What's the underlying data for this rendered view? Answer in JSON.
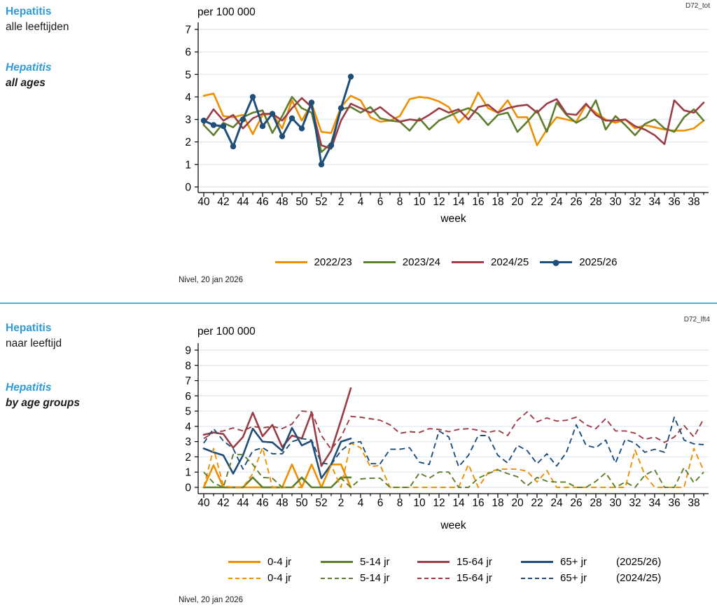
{
  "page": {
    "sections": [
      {
        "code": "D72_tot",
        "title_nl_1": "Hepatitis",
        "title_nl_2": "alle leeftijden",
        "title_en_1": "Hepatitis",
        "title_en_2": "all ages",
        "footer": "Nivel, 20 jan 2026"
      },
      {
        "code": "D72_lft4",
        "title_nl_1": "Hepatitis",
        "title_nl_2": "naar leeftijd",
        "title_en_1": "Hepatitis",
        "title_en_2": "by age groups",
        "footer": "Nivel, 20 jan 2026"
      }
    ],
    "colors": {
      "accent_blue_text": "#2e9bd6",
      "divider": "#56aecb",
      "orange": "#EE8F00",
      "green": "#5E7D2D",
      "maroon": "#9C3C47",
      "navy": "#1F4E79",
      "grid": "#e2eaf2",
      "axis": "#000000"
    }
  },
  "chart_data": [
    {
      "type": "line",
      "title": "per 100 000",
      "xlabel": "week",
      "ylabel": "per 100 000",
      "ylim": [
        0,
        7
      ],
      "yticks": [
        0,
        1,
        2,
        3,
        4,
        5,
        6,
        7
      ],
      "grid": true,
      "legend_position": "bottom",
      "categories": [
        40,
        41,
        42,
        43,
        44,
        45,
        46,
        47,
        48,
        49,
        50,
        51,
        52,
        1,
        2,
        3,
        4,
        5,
        6,
        7,
        8,
        9,
        10,
        11,
        12,
        13,
        14,
        15,
        16,
        17,
        18,
        19,
        20,
        21,
        22,
        23,
        24,
        25,
        26,
        27,
        28,
        29,
        30,
        31,
        32,
        33,
        34,
        35,
        36,
        37,
        38,
        39
      ],
      "xtick_labels": [
        40,
        42,
        44,
        46,
        48,
        50,
        52,
        2,
        4,
        6,
        8,
        10,
        12,
        14,
        16,
        18,
        20,
        22,
        24,
        26,
        28,
        30,
        32,
        34,
        36,
        38
      ],
      "legend_rows": [
        {
          "season": "",
          "entries": [
            0,
            1,
            2,
            3
          ]
        }
      ],
      "series": [
        {
          "name": "2022/23",
          "color": "#EE8F00",
          "style": "solid",
          "marker": false,
          "values": [
            4.05,
            4.15,
            3.15,
            3.1,
            3.2,
            2.35,
            3.2,
            3.25,
            2.6,
            3.85,
            2.95,
            3.7,
            2.45,
            2.4,
            3.55,
            4.05,
            3.85,
            3.1,
            2.9,
            2.95,
            3.15,
            3.9,
            4.0,
            3.95,
            3.8,
            3.55,
            2.85,
            3.3,
            4.2,
            3.5,
            3.3,
            3.85,
            3.1,
            3.1,
            1.85,
            2.55,
            3.1,
            3.0,
            2.9,
            3.65,
            3.3,
            3.0,
            2.85,
            3.0,
            2.6,
            2.75,
            2.65,
            2.55,
            2.5,
            2.5,
            2.6,
            2.95
          ]
        },
        {
          "name": "2023/24",
          "color": "#5E7D2D",
          "style": "solid",
          "marker": false,
          "values": [
            2.75,
            2.3,
            2.85,
            2.65,
            3.1,
            3.3,
            3.4,
            2.4,
            3.15,
            4.0,
            3.5,
            3.3,
            1.55,
            1.95,
            3.45,
            3.55,
            3.3,
            3.55,
            3.05,
            2.95,
            2.9,
            2.5,
            3.05,
            2.55,
            2.95,
            3.15,
            3.35,
            3.5,
            3.25,
            2.75,
            3.2,
            3.3,
            2.45,
            2.9,
            3.4,
            2.45,
            3.75,
            3.2,
            2.85,
            3.1,
            3.85,
            2.55,
            3.15,
            2.75,
            2.3,
            2.8,
            3.0,
            2.6,
            2.45,
            3.1,
            3.45,
            2.95
          ]
        },
        {
          "name": "2024/25",
          "color": "#9C3C47",
          "style": "solid",
          "marker": false,
          "values": [
            2.8,
            3.45,
            2.95,
            3.2,
            2.6,
            3.05,
            3.25,
            3.25,
            2.95,
            3.5,
            3.95,
            3.55,
            1.85,
            1.7,
            2.95,
            3.7,
            3.5,
            3.3,
            3.55,
            3.2,
            2.9,
            3.0,
            2.95,
            3.2,
            3.5,
            3.3,
            3.45,
            3.0,
            3.55,
            3.65,
            3.3,
            3.5,
            3.6,
            3.65,
            3.3,
            3.7,
            3.9,
            3.25,
            3.2,
            3.7,
            3.2,
            2.95,
            2.95,
            3.0,
            2.7,
            2.55,
            2.3,
            1.9,
            3.85,
            3.4,
            3.3,
            3.75
          ]
        },
        {
          "name": "2025/26",
          "color": "#1F4E79",
          "style": "solid",
          "marker": true,
          "values": [
            2.95,
            2.75,
            2.7,
            1.8,
            3.0,
            4.0,
            2.7,
            3.25,
            2.25,
            3.05,
            2.6,
            3.75,
            1.0,
            1.85,
            3.5,
            4.9,
            null,
            null,
            null,
            null,
            null,
            null,
            null,
            null,
            null,
            null,
            null,
            null,
            null,
            null,
            null,
            null,
            null,
            null,
            null,
            null,
            null,
            null,
            null,
            null,
            null,
            null,
            null,
            null,
            null,
            null,
            null,
            null,
            null,
            null,
            null,
            null
          ]
        }
      ]
    },
    {
      "type": "line",
      "title": "per 100 000",
      "xlabel": "week",
      "ylabel": "per 100 000",
      "ylim": [
        0,
        9
      ],
      "yticks": [
        0,
        1,
        2,
        3,
        4,
        5,
        6,
        7,
        8,
        9
      ],
      "grid": true,
      "legend_position": "bottom",
      "categories": [
        40,
        41,
        42,
        43,
        44,
        45,
        46,
        47,
        48,
        49,
        50,
        51,
        52,
        1,
        2,
        3,
        4,
        5,
        6,
        7,
        8,
        9,
        10,
        11,
        12,
        13,
        14,
        15,
        16,
        17,
        18,
        19,
        20,
        21,
        22,
        23,
        24,
        25,
        26,
        27,
        28,
        29,
        30,
        31,
        32,
        33,
        34,
        35,
        36,
        37,
        38,
        39
      ],
      "xtick_labels": [
        40,
        42,
        44,
        46,
        48,
        50,
        52,
        2,
        4,
        6,
        8,
        10,
        12,
        14,
        16,
        18,
        20,
        22,
        24,
        26,
        28,
        30,
        32,
        34,
        36,
        38
      ],
      "legend_rows": [
        {
          "season": "(2025/26)",
          "entries": [
            0,
            1,
            2,
            3
          ]
        },
        {
          "season": "(2024/25)",
          "entries": [
            4,
            5,
            6,
            7
          ]
        }
      ],
      "series": [
        {
          "name": "0-4 jr",
          "color": "#EE8F00",
          "style": "solid",
          "marker": false,
          "values": [
            0,
            1.45,
            0,
            0,
            0,
            0,
            0,
            0,
            0,
            1.5,
            0,
            1.5,
            0,
            1.5,
            1.5,
            0,
            null,
            null,
            null,
            null,
            null,
            null,
            null,
            null,
            null,
            null,
            null,
            null,
            null,
            null,
            null,
            null,
            null,
            null,
            null,
            null,
            null,
            null,
            null,
            null,
            null,
            null,
            null,
            null,
            null,
            null,
            null,
            null,
            null,
            null,
            null,
            null
          ]
        },
        {
          "name": "5-14 jr",
          "color": "#5E7D2D",
          "style": "solid",
          "marker": false,
          "values": [
            0,
            0,
            0,
            0,
            0,
            0.65,
            0,
            0,
            0,
            0,
            0.65,
            0,
            0,
            0,
            0.65,
            0.65,
            null,
            null,
            null,
            null,
            null,
            null,
            null,
            null,
            null,
            null,
            null,
            null,
            null,
            null,
            null,
            null,
            null,
            null,
            null,
            null,
            null,
            null,
            null,
            null,
            null,
            null,
            null,
            null,
            null,
            null,
            null,
            null,
            null,
            null,
            null,
            null
          ]
        },
        {
          "name": "15-64 jr",
          "color": "#9C3C47",
          "style": "solid",
          "marker": false,
          "values": [
            3.45,
            3.6,
            3.5,
            2.6,
            3.3,
            4.9,
            3.35,
            4.1,
            2.65,
            3.4,
            3.2,
            4.9,
            1.4,
            2.4,
            4.4,
            6.5,
            null,
            null,
            null,
            null,
            null,
            null,
            null,
            null,
            null,
            null,
            null,
            null,
            null,
            null,
            null,
            null,
            null,
            null,
            null,
            null,
            null,
            null,
            null,
            null,
            null,
            null,
            null,
            null,
            null,
            null,
            null,
            null,
            null,
            null,
            null,
            null
          ]
        },
        {
          "name": "65+ jr",
          "color": "#1F4E79",
          "style": "solid",
          "marker": false,
          "values": [
            2.55,
            2.3,
            2.1,
            0.9,
            2.1,
            3.85,
            3.0,
            2.95,
            2.4,
            3.9,
            2.75,
            3.05,
            0.6,
            1.5,
            3.0,
            3.2,
            null,
            null,
            null,
            null,
            null,
            null,
            null,
            null,
            null,
            null,
            null,
            null,
            null,
            null,
            null,
            null,
            null,
            null,
            null,
            null,
            null,
            null,
            null,
            null,
            null,
            null,
            null,
            null,
            null,
            null,
            null,
            null,
            null,
            null,
            null,
            null
          ]
        },
        {
          "name": "0-4 jr",
          "color": "#EE8F00",
          "style": "dashed",
          "marker": false,
          "values": [
            0,
            2.55,
            0.1,
            0,
            0,
            0.9,
            2.6,
            0,
            0,
            0,
            0,
            1.5,
            0,
            1.45,
            0,
            2.9,
            2.6,
            1.35,
            1.45,
            0,
            0,
            0,
            0,
            0,
            0,
            0,
            0,
            1.5,
            0,
            0.95,
            1.2,
            1.2,
            1.2,
            1.05,
            0.35,
            1.1,
            0,
            0,
            0,
            0,
            0,
            0,
            0,
            0,
            2.45,
            0.8,
            0,
            0,
            0,
            0,
            2.55,
            1.1
          ]
        },
        {
          "name": "5-14 jr",
          "color": "#5E7D2D",
          "style": "dashed",
          "marker": false,
          "values": [
            1.0,
            0.3,
            0,
            2.15,
            2.15,
            1.5,
            0.65,
            0.6,
            0,
            0,
            0.6,
            0,
            0,
            0,
            0.6,
            0,
            0.55,
            0.6,
            0.6,
            0,
            0,
            0,
            0.95,
            0.6,
            1.0,
            1.0,
            0,
            0,
            0.6,
            0.9,
            1.15,
            0.9,
            0.7,
            0.1,
            0.65,
            0.4,
            0.35,
            0.35,
            0,
            0,
            0.4,
            0.95,
            0,
            0.35,
            0,
            0.8,
            1.15,
            0,
            0,
            1.3,
            0.3,
            1.0
          ]
        },
        {
          "name": "15-64 jr",
          "color": "#9C3C47",
          "style": "dashed",
          "marker": false,
          "values": [
            3.2,
            3.6,
            3.7,
            3.9,
            3.7,
            4.0,
            3.9,
            4.0,
            3.85,
            4.15,
            5.0,
            4.95,
            3.4,
            2.5,
            3.3,
            4.65,
            4.6,
            4.5,
            4.4,
            4.1,
            3.55,
            3.65,
            3.6,
            3.85,
            3.8,
            3.65,
            3.8,
            3.85,
            3.75,
            3.6,
            3.75,
            3.4,
            4.4,
            4.95,
            4.3,
            4.55,
            4.35,
            4.4,
            4.6,
            4.1,
            3.85,
            4.5,
            3.7,
            3.7,
            3.55,
            3.15,
            3.3,
            2.95,
            3.3,
            4.05,
            3.3,
            4.5
          ]
        },
        {
          "name": "65+ jr",
          "color": "#1F4E79",
          "style": "dashed",
          "marker": false,
          "values": [
            2.9,
            3.85,
            3.05,
            2.55,
            1.2,
            2.4,
            2.6,
            2.2,
            2.2,
            3.0,
            3.2,
            3.1,
            1.6,
            1.5,
            2.4,
            2.9,
            3.0,
            1.55,
            1.55,
            2.5,
            2.5,
            2.6,
            1.65,
            1.5,
            3.7,
            3.3,
            1.35,
            2.1,
            3.4,
            3.4,
            2.1,
            1.6,
            2.75,
            2.4,
            1.55,
            2.2,
            1.4,
            2.3,
            4.1,
            2.75,
            2.6,
            3.1,
            1.6,
            3.15,
            2.9,
            2.3,
            2.5,
            2.3,
            4.6,
            3.1,
            2.85,
            2.8
          ]
        }
      ]
    }
  ]
}
